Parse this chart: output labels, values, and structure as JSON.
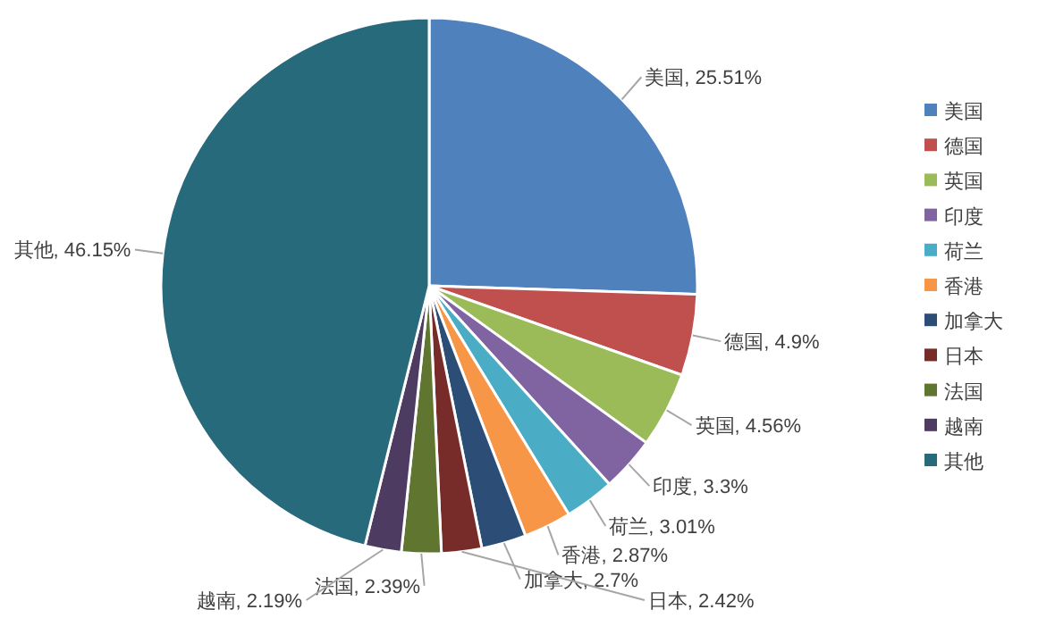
{
  "chart_data": {
    "type": "pie",
    "categories": [
      "美国",
      "德国",
      "英国",
      "印度",
      "荷兰",
      "香港",
      "加拿大",
      "日本",
      "法国",
      "越南",
      "其他"
    ],
    "values": [
      25.51,
      4.9,
      4.56,
      3.3,
      3.01,
      2.87,
      2.7,
      2.42,
      2.39,
      2.19,
      46.15
    ],
    "colors": [
      "#4f81bd",
      "#c0504d",
      "#9bbb59",
      "#8064a2",
      "#4bacc6",
      "#f79646",
      "#2c4d75",
      "#772c2a",
      "#5f7530",
      "#4d3b62",
      "#276a7c"
    ],
    "value_labels": [
      "美国, 25.51%",
      "德国, 4.9%",
      "英国, 4.56%",
      "印度, 3.3%",
      "荷兰, 3.01%",
      "香港, 2.87%",
      "加拿大, 2.7%",
      "日本, 2.42%",
      "法国, 2.39%",
      "越南, 2.19%",
      "其他, 46.15%"
    ],
    "legend": "right"
  }
}
